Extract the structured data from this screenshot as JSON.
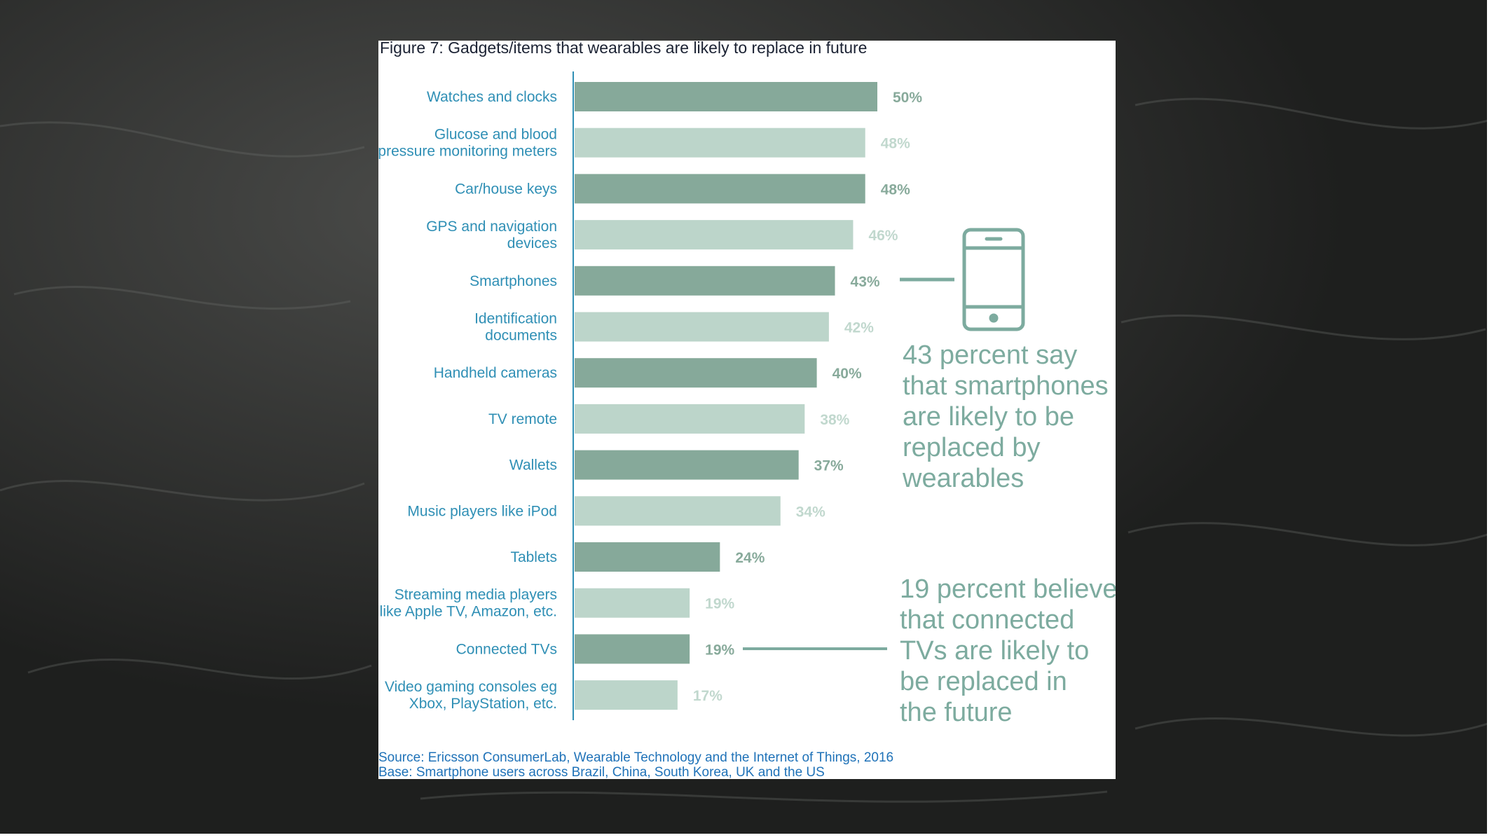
{
  "chart_data": {
    "type": "bar",
    "orientation": "horizontal",
    "title": "Figure 7: Gadgets/items that wearables are likely to replace in future",
    "unit": "%",
    "categories": [
      [
        "Watches and clocks"
      ],
      [
        "Glucose and blood",
        "pressure monitoring meters"
      ],
      [
        "Car/house keys"
      ],
      [
        "GPS and navigation",
        "devices"
      ],
      [
        "Smartphones"
      ],
      [
        "Identification",
        "documents"
      ],
      [
        "Handheld cameras"
      ],
      [
        "TV remote"
      ],
      [
        "Wallets"
      ],
      [
        "Music players like iPod"
      ],
      [
        "Tablets"
      ],
      [
        "Streaming media players",
        "like Apple TV, Amazon, etc."
      ],
      [
        "Connected TVs"
      ],
      [
        "Video gaming consoles eg",
        "Xbox, PlayStation, etc."
      ]
    ],
    "values": [
      50,
      48,
      48,
      46,
      43,
      42,
      40,
      38,
      37,
      34,
      24,
      19,
      19,
      17
    ],
    "value_labels": [
      "50%",
      "48%",
      "48%",
      "46%",
      "43%",
      "42%",
      "40%",
      "38%",
      "37%",
      "34%",
      "24%",
      "19%",
      "19%",
      "17%"
    ],
    "xlim": [
      0,
      50
    ],
    "grid": false,
    "legend": "none",
    "colors": {
      "bar_dark": "#86a99a",
      "bar_light": "#bcd5ca",
      "label_dark": "#88aa9b",
      "label_light": "#c1d8ce",
      "category_text": "#2f8fb5",
      "annotation": "#7dab9f",
      "axis": "#2f8fb5"
    },
    "annotations": [
      {
        "target_index": 4,
        "icon": "smartphone-icon",
        "lines": [
          "43 percent say",
          "that smartphones",
          "are likely to be",
          "replaced by",
          "wearables"
        ]
      },
      {
        "target_index": 12,
        "lines": [
          "19 percent believe",
          "that connected",
          "TVs are likely to",
          "be replaced in",
          "the future"
        ]
      }
    ],
    "source_lines": [
      "Source: Ericsson ConsumerLab, Wearable Technology and the Internet of Things, 2016",
      "Base: Smartphone users across Brazil, China, South Korea, UK and the US"
    ]
  }
}
